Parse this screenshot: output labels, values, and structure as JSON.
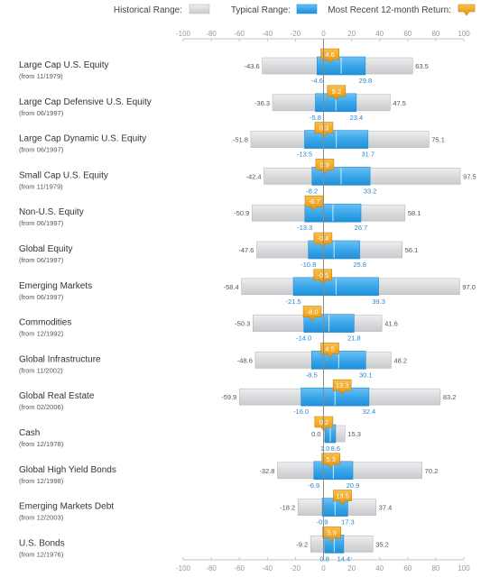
{
  "legend": {
    "historical_label": "Historical Range:",
    "typical_label": "Typical Range:",
    "recent_label": "Most Recent 12-month Return:"
  },
  "colors": {
    "historical": "#d5d7d9",
    "typical": "#3aa7ea",
    "recent": "#f3a40d",
    "low_label": "#555555",
    "typical_label": "#2a86d0",
    "axis": "#999999"
  },
  "chart_data": {
    "type": "range-bar",
    "xlim": [
      -100,
      100
    ],
    "ticks": [
      -100,
      -80,
      -60,
      -40,
      -20,
      0,
      20,
      40,
      60,
      80,
      100
    ],
    "grid": false,
    "legend_position": "top",
    "rows": [
      {
        "name": "Large Cap U.S. Equity",
        "since": "(from 11/1979)",
        "hist_low": -43.6,
        "hist_high": 63.5,
        "typ_low": -4.6,
        "typ_high": 29.8,
        "recent": 4.6
      },
      {
        "name": "Large Cap Defensive U.S. Equity",
        "since": "(from 06/1997)",
        "hist_low": -36.3,
        "hist_high": 47.5,
        "typ_low": -5.8,
        "typ_high": 23.4,
        "recent": 9.2
      },
      {
        "name": "Large Cap Dynamic U.S. Equity",
        "since": "(from 06/1997)",
        "hist_low": -51.8,
        "hist_high": 75.1,
        "typ_low": -13.5,
        "typ_high": 31.7,
        "recent": 0.3
      },
      {
        "name": "Small Cap U.S. Equity",
        "since": "(from 11/1979)",
        "hist_low": -42.4,
        "hist_high": 97.5,
        "typ_low": -8.2,
        "typ_high": 33.2,
        "recent": 0.9
      },
      {
        "name": "Non-U.S. Equity",
        "since": "(from 06/1997)",
        "hist_low": -50.9,
        "hist_high": 58.1,
        "typ_low": -13.3,
        "typ_high": 26.7,
        "recent": -6.7
      },
      {
        "name": "Global Equity",
        "since": "(from 06/1997)",
        "hist_low": -47.6,
        "hist_high": 56.1,
        "typ_low": -10.8,
        "typ_high": 25.8,
        "recent": -0.4
      },
      {
        "name": "Emerging Markets",
        "since": "(from 06/1997)",
        "hist_low": -58.4,
        "hist_high": 97.0,
        "typ_low": -21.5,
        "typ_high": 39.3,
        "recent": -0.5
      },
      {
        "name": "Commodities",
        "since": "(from 12/1992)",
        "hist_low": -50.3,
        "hist_high": 41.6,
        "typ_low": -14.0,
        "typ_high": 21.8,
        "recent": -8.0
      },
      {
        "name": "Global Infrastructure",
        "since": "(from 11/2002)",
        "hist_low": -48.6,
        "hist_high": 48.2,
        "typ_low": -8.5,
        "typ_high": 30.1,
        "recent": 4.5
      },
      {
        "name": "Global Real Estate",
        "since": "(from 02/2006)",
        "hist_low": -59.9,
        "hist_high": 83.2,
        "typ_low": -16.0,
        "typ_high": 32.4,
        "recent": 13.3
      },
      {
        "name": "Cash",
        "since": "(from 12/1978)",
        "hist_low": 0.0,
        "hist_high": 15.3,
        "typ_low": 1.0,
        "typ_high": 8.6,
        "recent": 0.2
      },
      {
        "name": "Global High Yield Bonds",
        "since": "(from 12/1998)",
        "hist_low": -32.8,
        "hist_high": 70.2,
        "typ_low": -6.9,
        "typ_high": 20.9,
        "recent": 5.3
      },
      {
        "name": "Emerging Markets Debt",
        "since": "(from 12/2003)",
        "hist_low": -18.2,
        "hist_high": 37.4,
        "typ_low": -0.9,
        "typ_high": 17.3,
        "recent": 13.5
      },
      {
        "name": "U.S. Bonds",
        "since": "(from 12/1976)",
        "hist_low": -9.2,
        "hist_high": 35.2,
        "typ_low": 0.8,
        "typ_high": 14.4,
        "recent": 5.9
      }
    ]
  }
}
